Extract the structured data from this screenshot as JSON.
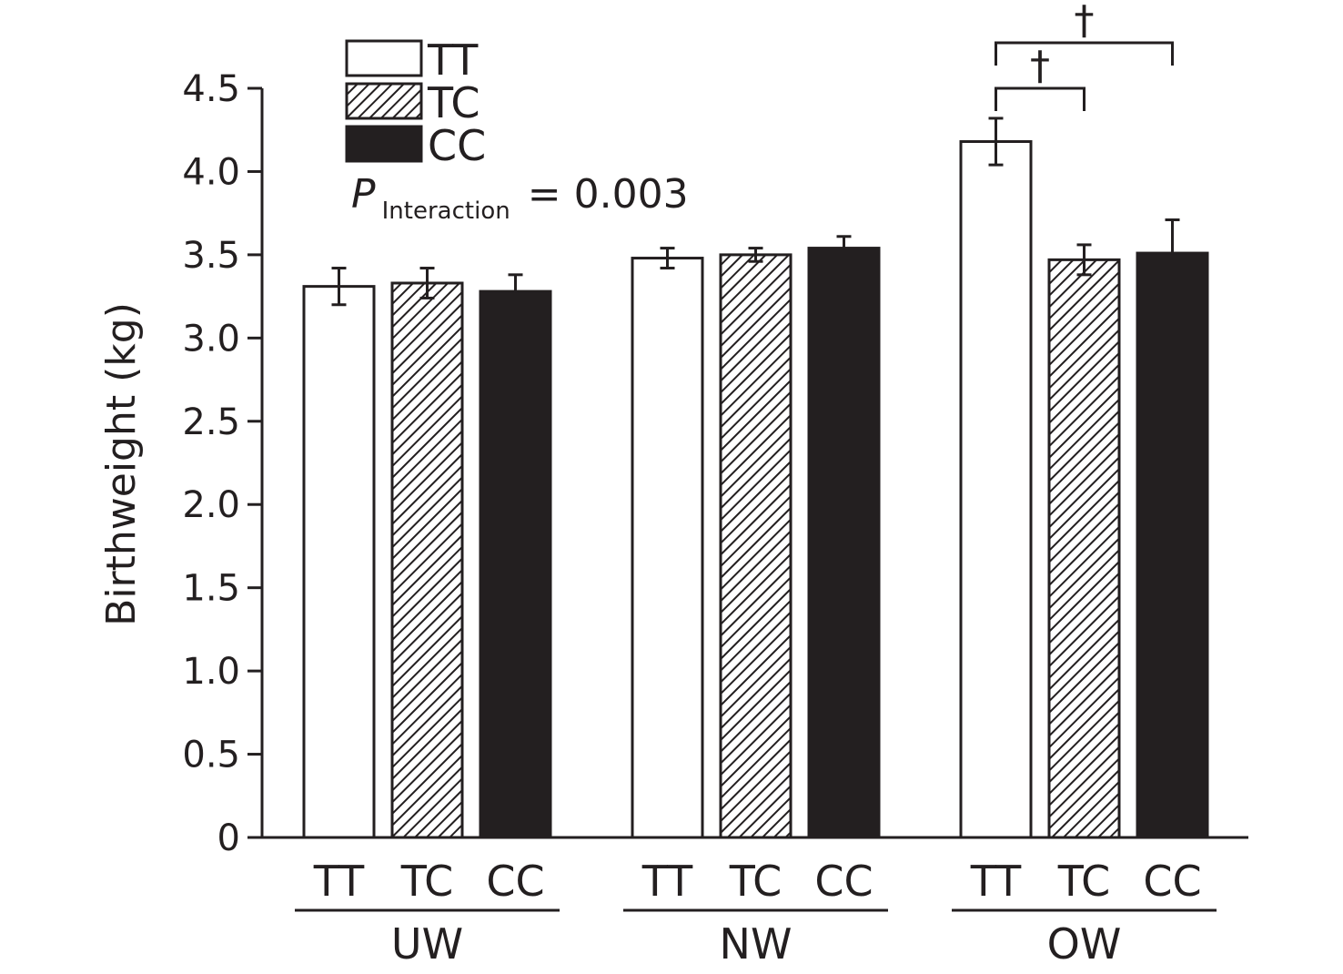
{
  "chart_data": {
    "type": "bar",
    "ylabel": "Birthweight (kg)",
    "ylim": [
      0,
      4.5
    ],
    "yticks": [
      "0",
      "0.5",
      "1.0",
      "1.5",
      "2.0",
      "2.5",
      "3.0",
      "3.5",
      "4.0",
      "4.5"
    ],
    "groups": [
      "UW",
      "NW",
      "OW"
    ],
    "genotypes": [
      "TT",
      "TC",
      "CC"
    ],
    "series": [
      {
        "name": "TT",
        "fill": "#ffffff",
        "pattern": "none",
        "values": [
          3.31,
          3.48,
          4.18
        ],
        "errors": [
          0.11,
          0.06,
          0.14
        ]
      },
      {
        "name": "TC",
        "fill": "#231f20",
        "pattern": "diagonal-hatch",
        "values": [
          3.33,
          3.5,
          3.47
        ],
        "errors": [
          0.09,
          0.04,
          0.09
        ]
      },
      {
        "name": "CC",
        "fill": "#231f20",
        "pattern": "none",
        "values": [
          3.28,
          3.54,
          3.51
        ],
        "errors": [
          0.1,
          0.07,
          0.2
        ]
      }
    ],
    "legend_placement": "top-left",
    "annotation": {
      "p_symbol": "P",
      "p_subscript": "Interaction",
      "p_value_text": "= 0.003"
    },
    "significance": [
      {
        "group": "OW",
        "from": "TT",
        "to": "TC",
        "symbol": "†"
      },
      {
        "group": "OW",
        "from": "TT",
        "to": "CC",
        "symbol": "†"
      }
    ]
  }
}
